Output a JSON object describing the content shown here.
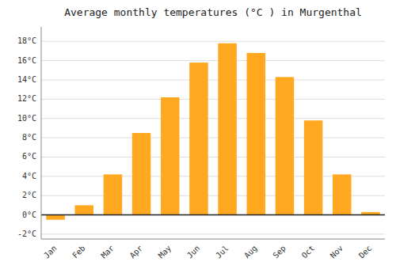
{
  "chart_data": {
    "type": "bar",
    "title": "Average monthly temperatures (°C ) in Murgenthal",
    "categories": [
      "Jan",
      "Feb",
      "Mar",
      "Apr",
      "May",
      "Jun",
      "Jul",
      "Aug",
      "Sep",
      "Oct",
      "Nov",
      "Dec"
    ],
    "values": [
      -0.5,
      1.0,
      4.2,
      8.5,
      12.2,
      15.8,
      17.8,
      16.8,
      14.3,
      9.8,
      4.2,
      0.3
    ],
    "color": "#FFA820",
    "ylim": [
      -2.5,
      19.5
    ],
    "yticks": [
      {
        "value": -2,
        "label": "-2°C"
      },
      {
        "value": 0,
        "label": "0°C"
      },
      {
        "value": 2,
        "label": "2°C"
      },
      {
        "value": 4,
        "label": "4°C"
      },
      {
        "value": 6,
        "label": "6°C"
      },
      {
        "value": 8,
        "label": "8°C"
      },
      {
        "value": 10,
        "label": "10°C"
      },
      {
        "value": 12,
        "label": "12°C"
      },
      {
        "value": 14,
        "label": "14°C"
      },
      {
        "value": 16,
        "label": "16°C"
      },
      {
        "value": 18,
        "label": "18°C"
      }
    ],
    "grid": true
  }
}
